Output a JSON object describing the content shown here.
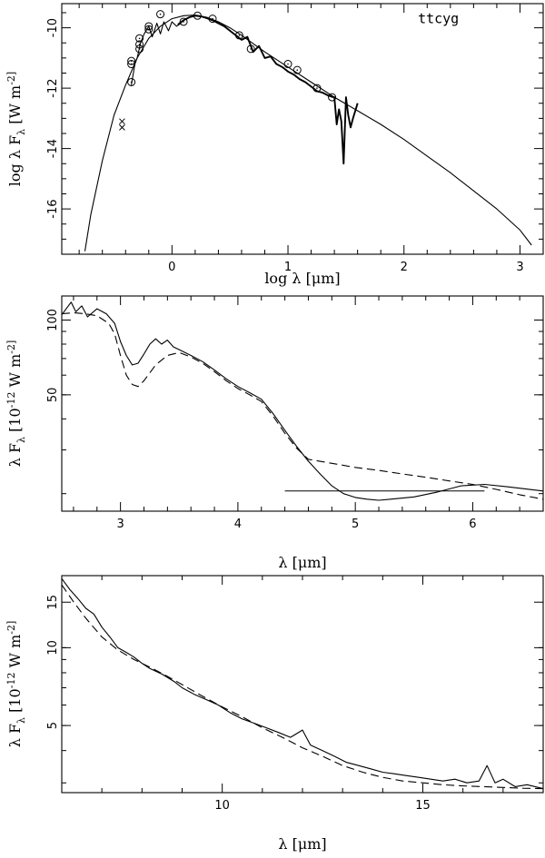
{
  "chart_data": [
    {
      "type": "line",
      "panel": "sed",
      "xlabel": "log λ [μm]",
      "ylabel": "log λ F_λ [W m^-2]",
      "annotation": "ttcyg",
      "xlim": [
        -0.95,
        3.2
      ],
      "ylim": [
        -17.5,
        -9.2
      ],
      "xticks": [
        0,
        1,
        2,
        3
      ],
      "yticks": [
        -10,
        -12,
        -14,
        -16
      ],
      "series": [
        {
          "style": "thin",
          "x": [
            -0.75,
            -0.7,
            -0.6,
            -0.5,
            -0.4,
            -0.3,
            -0.2,
            -0.1,
            0.0,
            0.1,
            0.2,
            0.3,
            0.4,
            0.5,
            0.6,
            0.8,
            1.0,
            1.2,
            1.4,
            1.6,
            1.8,
            2.0,
            2.2,
            2.4,
            2.6,
            2.8,
            3.0,
            3.1
          ],
          "y": [
            -17.4,
            -16.2,
            -14.4,
            -12.9,
            -11.9,
            -11.0,
            -10.35,
            -9.95,
            -9.7,
            -9.6,
            -9.58,
            -9.65,
            -9.8,
            -10.0,
            -10.25,
            -10.8,
            -11.3,
            -11.8,
            -12.3,
            -12.75,
            -13.2,
            -13.7,
            -14.25,
            -14.8,
            -15.4,
            -16.0,
            -16.7,
            -17.2
          ]
        },
        {
          "style": "thin",
          "x": [
            -0.35,
            -0.32,
            -0.3,
            -0.27,
            -0.24,
            -0.2,
            -0.17,
            -0.13,
            -0.1,
            -0.07,
            -0.03,
            0.0,
            0.04,
            0.08
          ],
          "y": [
            -11.9,
            -11.2,
            -11.0,
            -10.5,
            -10.2,
            -9.95,
            -10.3,
            -9.85,
            -10.2,
            -9.8,
            -10.1,
            -9.8,
            -9.95,
            -9.85
          ]
        },
        {
          "style": "thick",
          "x": [
            0.05,
            0.1,
            0.15,
            0.2,
            0.25,
            0.3,
            0.35,
            0.4,
            0.45,
            0.5,
            0.55,
            0.6,
            0.65,
            0.7,
            0.75,
            0.8,
            0.85,
            0.9,
            0.95,
            1.0,
            1.05,
            1.1,
            1.15,
            1.2,
            1.25,
            1.3,
            1.35,
            1.4,
            1.42,
            1.44,
            1.46,
            1.48,
            1.5,
            1.52,
            1.54,
            1.56,
            1.6
          ],
          "y": [
            -9.9,
            -9.75,
            -9.65,
            -9.6,
            -9.62,
            -9.68,
            -9.75,
            -9.85,
            -9.95,
            -10.1,
            -10.25,
            -10.4,
            -10.3,
            -10.8,
            -10.6,
            -11.0,
            -10.95,
            -11.2,
            -11.3,
            -11.45,
            -11.55,
            -11.7,
            -11.8,
            -11.95,
            -12.1,
            -12.15,
            -12.25,
            -12.3,
            -13.2,
            -12.7,
            -13.1,
            -14.5,
            -12.3,
            -12.9,
            -13.3,
            -13.0,
            -12.5
          ]
        }
      ],
      "markers": [
        {
          "shape": "circle",
          "x": -0.35,
          "y": -11.1
        },
        {
          "shape": "circle",
          "x": -0.35,
          "y": -11.2
        },
        {
          "shape": "circle",
          "x": -0.35,
          "y": -11.8
        },
        {
          "shape": "circle",
          "x": -0.28,
          "y": -10.35
        },
        {
          "shape": "circle",
          "x": -0.28,
          "y": -10.55
        },
        {
          "shape": "circle",
          "x": -0.28,
          "y": -10.7
        },
        {
          "shape": "circle",
          "x": -0.2,
          "y": -9.95
        },
        {
          "shape": "circle",
          "x": -0.2,
          "y": -10.05
        },
        {
          "shape": "circle",
          "x": -0.1,
          "y": -9.55
        },
        {
          "shape": "circle",
          "x": 0.1,
          "y": -9.8
        },
        {
          "shape": "circle",
          "x": 0.22,
          "y": -9.6
        },
        {
          "shape": "circle",
          "x": 0.35,
          "y": -9.7
        },
        {
          "shape": "circle",
          "x": 0.58,
          "y": -10.25
        },
        {
          "shape": "circle",
          "x": 0.68,
          "y": -10.7
        },
        {
          "shape": "circle",
          "x": 1.0,
          "y": -11.2
        },
        {
          "shape": "circle",
          "x": 1.08,
          "y": -11.4
        },
        {
          "shape": "circle",
          "x": 1.25,
          "y": -12.0
        },
        {
          "shape": "circle",
          "x": 1.38,
          "y": -12.3
        },
        {
          "shape": "cross",
          "x": -0.43,
          "y": -13.1
        },
        {
          "shape": "cross",
          "x": -0.43,
          "y": -13.3
        }
      ]
    },
    {
      "type": "line",
      "panel": "3-6 micron",
      "xlabel": "λ [μm]",
      "ylabel": "λ F_λ [10^-12 W m^-2]",
      "xlim": [
        2.5,
        6.6
      ],
      "ylim_log": [
        17,
        125
      ],
      "yscale": "log",
      "xticks": [
        3,
        4,
        5,
        6
      ],
      "yticks": [
        50,
        100
      ],
      "hline": {
        "x": [
          4.4,
          6.1
        ],
        "y": 20.5
      },
      "series": [
        {
          "style": "solid",
          "x": [
            2.5,
            2.58,
            2.62,
            2.67,
            2.72,
            2.8,
            2.88,
            2.95,
            3.0,
            3.05,
            3.1,
            3.15,
            3.2,
            3.25,
            3.3,
            3.35,
            3.4,
            3.45,
            3.5,
            3.6,
            3.7,
            3.8,
            3.9,
            4.0,
            4.1,
            4.2,
            4.3,
            4.4,
            4.5,
            4.6,
            4.7,
            4.8,
            4.9,
            5.0,
            5.1,
            5.2,
            5.3,
            5.5,
            5.7,
            5.9,
            6.1,
            6.3,
            6.6
          ],
          "y": [
            105,
            118,
            108,
            114,
            103,
            111,
            106,
            97,
            82,
            72,
            66,
            67,
            73,
            80,
            84,
            80,
            83,
            78,
            76,
            72,
            68,
            63,
            58,
            54,
            51,
            48,
            42,
            36,
            31,
            27,
            24,
            21.5,
            20,
            19.3,
            19.0,
            18.8,
            19.0,
            19.4,
            20.3,
            21.5,
            21.8,
            21.3,
            20.5
          ]
        },
        {
          "style": "dashed",
          "x": [
            2.5,
            2.6,
            2.7,
            2.8,
            2.9,
            2.95,
            3.0,
            3.05,
            3.1,
            3.15,
            3.2,
            3.3,
            3.4,
            3.5,
            3.6,
            3.7,
            3.8,
            3.9,
            4.0,
            4.1,
            4.2,
            4.3,
            4.4,
            4.5,
            4.6,
            4.8,
            5.0,
            5.2,
            5.4,
            5.6,
            5.8,
            6.0,
            6.2,
            6.4,
            6.6
          ],
          "y": [
            106,
            107,
            106,
            104,
            97,
            88,
            72,
            60,
            55,
            54,
            57,
            66,
            72,
            74,
            71,
            67,
            62,
            57,
            53,
            50,
            47,
            41,
            35,
            30.5,
            27.5,
            26.5,
            25.5,
            24.8,
            24.0,
            23.3,
            22.5,
            21.8,
            20.8,
            19.8,
            19.0
          ]
        }
      ]
    },
    {
      "type": "line",
      "panel": "6-18 micron",
      "xlabel": "λ [μm]",
      "ylabel": "λ F_λ [10^-12 W m^-2]",
      "xlim": [
        6.0,
        18.0
      ],
      "ylim_log": [
        2.75,
        19
      ],
      "yscale": "log",
      "xticks": [
        10,
        15
      ],
      "yticks": [
        5,
        10,
        15
      ],
      "series": [
        {
          "style": "solid",
          "x": [
            6.0,
            6.2,
            6.4,
            6.6,
            6.8,
            7.0,
            7.2,
            7.4,
            7.6,
            7.8,
            8.0,
            8.2,
            8.5,
            8.8,
            9.0,
            9.3,
            9.6,
            9.9,
            10.2,
            10.5,
            10.8,
            11.1,
            11.4,
            11.7,
            12.0,
            12.2,
            12.5,
            12.8,
            13.1,
            13.4,
            13.7,
            14.0,
            14.3,
            14.6,
            14.9,
            15.2,
            15.5,
            15.8,
            16.1,
            16.4,
            16.6,
            16.8,
            17.0,
            17.3,
            17.6,
            18.0
          ],
          "y": [
            18.5,
            16.8,
            15.5,
            14.2,
            13.5,
            12.0,
            11.0,
            10.0,
            9.6,
            9.2,
            8.7,
            8.3,
            7.9,
            7.4,
            7.0,
            6.6,
            6.3,
            6.0,
            5.6,
            5.3,
            5.1,
            4.9,
            4.7,
            4.5,
            4.8,
            4.2,
            4.0,
            3.8,
            3.6,
            3.5,
            3.4,
            3.3,
            3.25,
            3.2,
            3.15,
            3.1,
            3.05,
            3.1,
            3.0,
            3.05,
            3.5,
            3.0,
            3.1,
            2.9,
            2.95,
            2.85
          ]
        },
        {
          "style": "dashed",
          "x": [
            6.0,
            6.3,
            6.6,
            7.0,
            7.4,
            7.8,
            8.2,
            8.6,
            9.0,
            9.5,
            10.0,
            10.5,
            11.0,
            11.5,
            12.0,
            12.5,
            13.0,
            13.5,
            14.0,
            14.5,
            15.0,
            15.5,
            16.0,
            16.5,
            17.0,
            17.5,
            18.0
          ],
          "y": [
            17.5,
            15.0,
            13.0,
            11.0,
            9.8,
            9.0,
            8.4,
            7.8,
            7.2,
            6.5,
            5.9,
            5.4,
            4.9,
            4.5,
            4.1,
            3.8,
            3.5,
            3.3,
            3.15,
            3.05,
            3.0,
            2.95,
            2.92,
            2.9,
            2.88,
            2.86,
            2.85
          ]
        }
      ]
    }
  ]
}
